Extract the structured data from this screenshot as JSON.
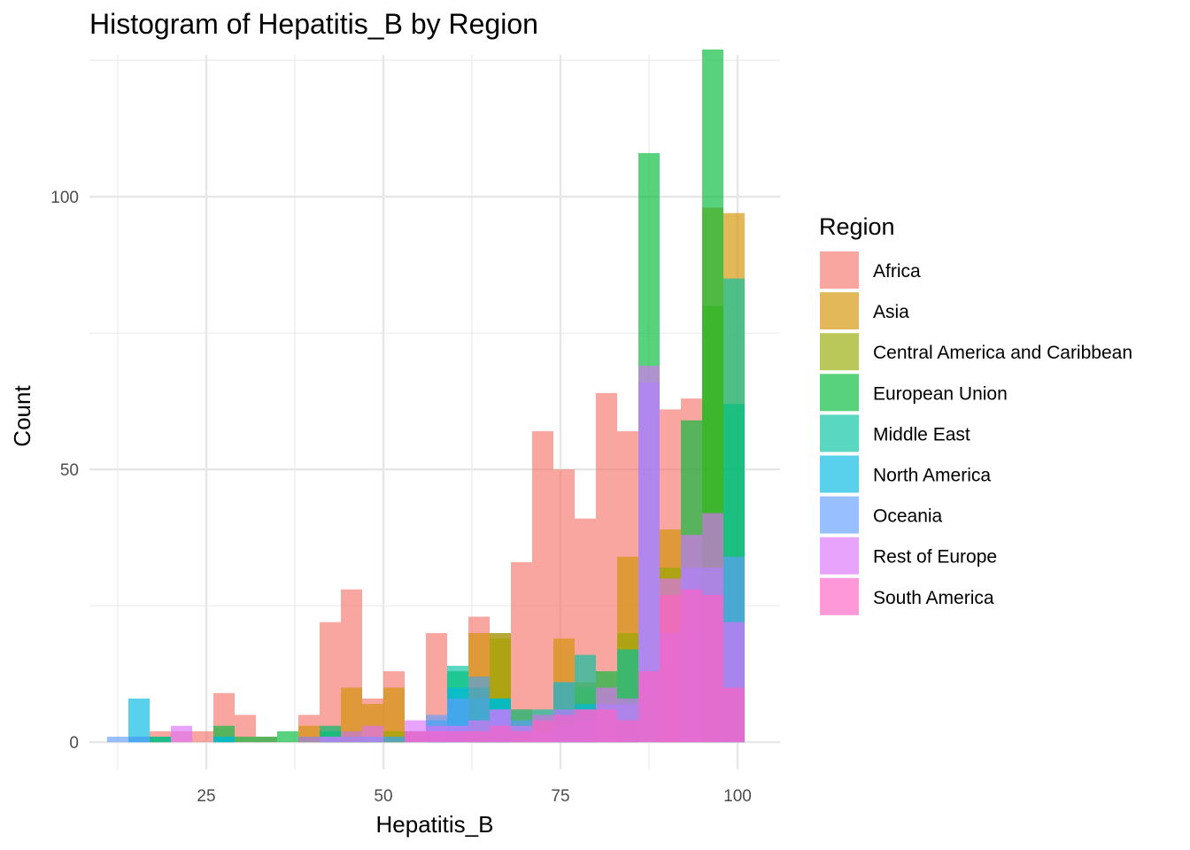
{
  "chart_data": {
    "type": "bar",
    "subtype": "overlaid-histogram",
    "title": "Histogram of Hepatitis_B by Region",
    "xlabel": "Hepatitis_B",
    "ylabel": "Count",
    "xlim": [
      8.5,
      106
    ],
    "ylim": [
      -5,
      126
    ],
    "xticks": [
      25,
      50,
      75,
      100
    ],
    "yticks": [
      0,
      50,
      100
    ],
    "grid": true,
    "legend": {
      "title": "Region",
      "position": "right"
    },
    "bin_width": 3,
    "bin_starts": [
      11,
      14,
      17,
      20,
      23,
      26,
      29,
      32,
      35,
      38,
      41,
      44,
      47,
      50,
      53,
      56,
      59,
      62,
      65,
      68,
      71,
      74,
      77,
      80,
      83,
      86,
      89,
      92,
      95,
      98
    ],
    "series": [
      {
        "name": "Africa",
        "color": "#F8766D",
        "values": [
          0,
          0,
          2,
          2,
          2,
          9,
          5,
          1,
          0,
          5,
          22,
          28,
          8,
          13,
          0,
          20,
          0,
          23,
          20,
          33,
          57,
          50,
          41,
          64,
          57,
          0,
          61,
          63,
          0,
          0
        ]
      },
      {
        "name": "Asia",
        "color": "#D39200",
        "values": [
          0,
          0,
          0,
          0,
          0,
          0,
          0,
          0,
          0,
          3,
          3,
          10,
          7,
          10,
          0,
          0,
          0,
          20,
          19,
          6,
          5,
          19,
          11,
          0,
          34,
          0,
          39,
          0,
          98,
          97
        ]
      },
      {
        "name": "Central America and Caribbean",
        "color": "#93AA00",
        "values": [
          0,
          0,
          0,
          0,
          0,
          0,
          0,
          0,
          0,
          0,
          1,
          2,
          1,
          2,
          0,
          0,
          0,
          12,
          20,
          4,
          0,
          6,
          10,
          0,
          20,
          0,
          32,
          0,
          80,
          0
        ]
      },
      {
        "name": "European Union",
        "color": "#00BA38",
        "values": [
          0,
          0,
          1,
          0,
          0,
          3,
          1,
          1,
          2,
          1,
          2,
          1,
          1,
          1,
          2,
          1,
          13,
          10,
          8,
          0,
          0,
          0,
          0,
          13,
          0,
          108,
          0,
          59,
          127,
          62
        ]
      },
      {
        "name": "Middle East",
        "color": "#00C19F",
        "values": [
          0,
          1,
          1,
          0,
          0,
          1,
          0,
          0,
          0,
          0,
          3,
          0,
          1,
          0,
          0,
          2,
          14,
          8,
          8,
          6,
          6,
          6,
          16,
          0,
          17,
          0,
          0,
          0,
          0,
          85
        ]
      },
      {
        "name": "North America",
        "color": "#00B9E3",
        "values": [
          0,
          8,
          0,
          0,
          0,
          1,
          0,
          0,
          0,
          0,
          0,
          0,
          0,
          0,
          0,
          4,
          10,
          0,
          8,
          0,
          0,
          11,
          7,
          0,
          0,
          0,
          0,
          0,
          0,
          0
        ]
      },
      {
        "name": "Oceania",
        "color": "#619CFF",
        "values": [
          1,
          1,
          0,
          0,
          0,
          0,
          0,
          0,
          0,
          0,
          1,
          1,
          1,
          1,
          2,
          5,
          8,
          12,
          6,
          4,
          2,
          3,
          4,
          7,
          7,
          66,
          20,
          32,
          32,
          34
        ]
      },
      {
        "name": "Rest of Europe",
        "color": "#DB72FB",
        "values": [
          0,
          0,
          0,
          3,
          0,
          0,
          0,
          0,
          0,
          1,
          1,
          2,
          3,
          0,
          4,
          3,
          3,
          4,
          6,
          3,
          5,
          6,
          6,
          10,
          8,
          69,
          30,
          38,
          42,
          22
        ]
      },
      {
        "name": "South America",
        "color": "#FF61C3",
        "values": [
          0,
          0,
          0,
          0,
          0,
          0,
          0,
          0,
          0,
          0,
          0,
          0,
          0,
          0,
          2,
          2,
          2,
          2,
          3,
          2,
          4,
          5,
          6,
          6,
          4,
          13,
          27,
          28,
          27,
          10
        ]
      }
    ]
  }
}
